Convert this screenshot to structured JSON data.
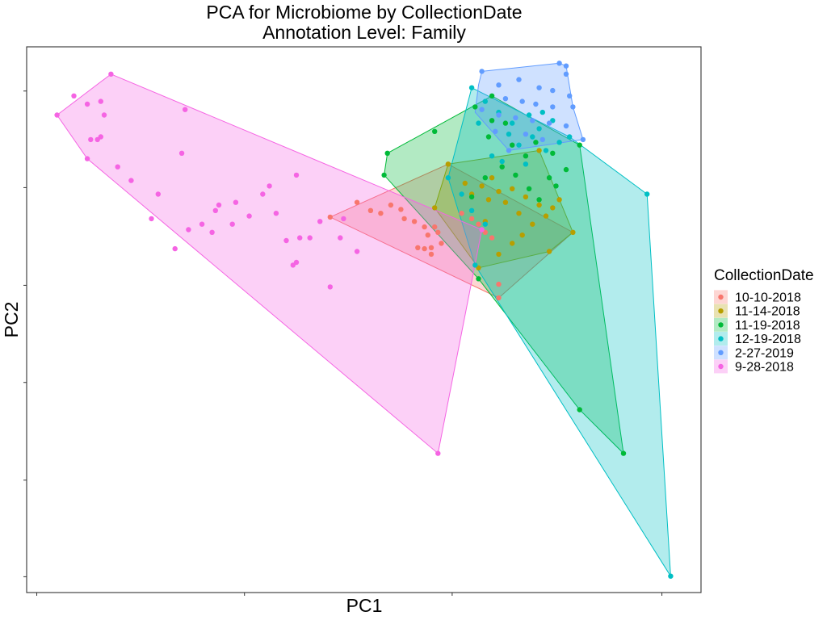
{
  "chart_data": {
    "type": "scatter",
    "title": "PCA for Microbiome by CollectionDate",
    "subtitle": "Annotation Level: Family",
    "xlabel": "PC1",
    "ylabel": "PC2",
    "xlim": [
      0,
      100
    ],
    "ylim": [
      0,
      100
    ],
    "tick_labels_shown": false,
    "grid": false,
    "legend": {
      "title": "CollectionDate",
      "position": "right"
    },
    "series": [
      {
        "name": "10-10-2018",
        "color": "#F8766D",
        "hull": [
          [
            45.0,
            68.8
          ],
          [
            62.5,
            78.5
          ],
          [
            81.0,
            66.0
          ],
          [
            70.0,
            54.0
          ]
        ],
        "points": [
          [
            45.0,
            68.8
          ],
          [
            49.0,
            71.5
          ],
          [
            51.0,
            70.0
          ],
          [
            52.5,
            69.5
          ],
          [
            54.0,
            71.0
          ],
          [
            55.5,
            70.2
          ],
          [
            56.0,
            68.5
          ],
          [
            57.5,
            68.0
          ],
          [
            59.0,
            67.0
          ],
          [
            59.5,
            65.5
          ],
          [
            60.5,
            67.0
          ],
          [
            61.0,
            66.0
          ],
          [
            58.0,
            63.2
          ],
          [
            59.0,
            63.0
          ],
          [
            60.0,
            63.2
          ],
          [
            61.5,
            64.0
          ],
          [
            64.5,
            69.5
          ],
          [
            66.0,
            68.5
          ],
          [
            67.0,
            67.5
          ],
          [
            68.0,
            66.0
          ],
          [
            69.0,
            65.0
          ],
          [
            70.0,
            56.5
          ],
          [
            70.0,
            54.0
          ],
          [
            62.5,
            78.5
          ],
          [
            60.0,
            62.0
          ]
        ]
      },
      {
        "name": "11-14-2018",
        "color": "#B79F00",
        "hull": [
          [
            62.5,
            78.5
          ],
          [
            76.0,
            81.0
          ],
          [
            81.0,
            66.0
          ],
          [
            77.5,
            62.5
          ],
          [
            67.0,
            59.5
          ],
          [
            60.5,
            70.5
          ]
        ],
        "points": [
          [
            62.5,
            78.5
          ],
          [
            65.0,
            75.0
          ],
          [
            66.0,
            73.0
          ],
          [
            67.5,
            74.5
          ],
          [
            68.5,
            72.0
          ],
          [
            69.0,
            76.0
          ],
          [
            70.0,
            73.5
          ],
          [
            71.0,
            71.5
          ],
          [
            72.0,
            74.0
          ],
          [
            73.0,
            69.5
          ],
          [
            74.0,
            72.5
          ],
          [
            75.0,
            67.5
          ],
          [
            76.0,
            71.0
          ],
          [
            77.0,
            69.0
          ],
          [
            78.0,
            70.5
          ],
          [
            79.0,
            72.0
          ],
          [
            76.0,
            81.0
          ],
          [
            81.0,
            66.0
          ],
          [
            77.5,
            62.5
          ],
          [
            72.0,
            64.0
          ],
          [
            70.0,
            62.0
          ],
          [
            67.0,
            59.5
          ],
          [
            60.5,
            70.5
          ],
          [
            68.0,
            68.0
          ],
          [
            73.5,
            65.5
          ]
        ]
      },
      {
        "name": "11-19-2018",
        "color": "#00BA38",
        "hull": [
          [
            53.5,
            80.5
          ],
          [
            69.0,
            91.0
          ],
          [
            82.0,
            82.0
          ],
          [
            88.5,
            25.5
          ],
          [
            82.0,
            33.5
          ],
          [
            67.0,
            57.5
          ],
          [
            53.0,
            76.5
          ]
        ],
        "points": [
          [
            69.0,
            91.0
          ],
          [
            66.5,
            89.0
          ],
          [
            69.0,
            86.5
          ],
          [
            68.5,
            83.5
          ],
          [
            71.0,
            86.0
          ],
          [
            72.0,
            82.0
          ],
          [
            74.0,
            80.0
          ],
          [
            75.5,
            82.5
          ],
          [
            78.0,
            80.5
          ],
          [
            80.0,
            77.5
          ],
          [
            82.0,
            82.0
          ],
          [
            77.5,
            76.0
          ],
          [
            70.5,
            78.0
          ],
          [
            72.5,
            76.5
          ],
          [
            74.5,
            74.0
          ],
          [
            76.0,
            72.0
          ],
          [
            78.5,
            74.5
          ],
          [
            68.0,
            76.0
          ],
          [
            66.0,
            72.5
          ],
          [
            60.5,
            84.5
          ],
          [
            53.5,
            80.5
          ],
          [
            53.0,
            76.5
          ],
          [
            67.0,
            57.5
          ],
          [
            88.5,
            25.5
          ],
          [
            82.0,
            33.5
          ]
        ]
      },
      {
        "name": "12-19-2018",
        "color": "#00BFC4",
        "hull": [
          [
            66.0,
            92.5
          ],
          [
            80.5,
            83.5
          ],
          [
            92.0,
            73.0
          ],
          [
            95.5,
            3.0
          ],
          [
            66.5,
            60.0
          ],
          [
            62.5,
            76.0
          ]
        ],
        "points": [
          [
            66.0,
            92.5
          ],
          [
            68.0,
            90.0
          ],
          [
            70.0,
            88.0
          ],
          [
            72.0,
            86.0
          ],
          [
            74.5,
            87.5
          ],
          [
            76.0,
            85.0
          ],
          [
            78.0,
            86.5
          ],
          [
            80.5,
            83.5
          ],
          [
            71.5,
            84.0
          ],
          [
            73.0,
            82.0
          ],
          [
            75.0,
            83.5
          ],
          [
            77.0,
            81.0
          ],
          [
            79.0,
            82.5
          ],
          [
            69.0,
            80.0
          ],
          [
            62.5,
            76.0
          ],
          [
            64.5,
            73.0
          ],
          [
            66.0,
            70.0
          ],
          [
            68.0,
            67.5
          ],
          [
            66.5,
            60.0
          ],
          [
            92.0,
            73.0
          ],
          [
            95.5,
            3.0
          ],
          [
            70.5,
            79.0
          ],
          [
            74.0,
            78.5
          ],
          [
            67.0,
            86.0
          ],
          [
            76.5,
            88.0
          ]
        ]
      },
      {
        "name": "2-27-2019",
        "color": "#619CFF",
        "hull": [
          [
            67.5,
            95.5
          ],
          [
            79.0,
            97.0
          ],
          [
            80.0,
            96.5
          ],
          [
            81.0,
            89.0
          ],
          [
            82.5,
            83.0
          ],
          [
            71.5,
            81.0
          ],
          [
            66.5,
            88.0
          ],
          [
            67.0,
            93.0
          ]
        ],
        "points": [
          [
            67.5,
            95.5
          ],
          [
            79.0,
            97.0
          ],
          [
            80.0,
            96.5
          ],
          [
            80.0,
            95.0
          ],
          [
            73.0,
            94.0
          ],
          [
            70.0,
            93.0
          ],
          [
            76.0,
            92.5
          ],
          [
            78.0,
            92.0
          ],
          [
            80.5,
            91.0
          ],
          [
            71.0,
            90.5
          ],
          [
            73.5,
            90.0
          ],
          [
            75.5,
            89.5
          ],
          [
            78.0,
            89.0
          ],
          [
            81.0,
            89.0
          ],
          [
            67.5,
            88.5
          ],
          [
            70.0,
            87.5
          ],
          [
            72.5,
            87.0
          ],
          [
            75.0,
            86.5
          ],
          [
            77.5,
            86.0
          ],
          [
            80.0,
            85.5
          ],
          [
            69.5,
            84.5
          ],
          [
            74.0,
            84.0
          ],
          [
            76.5,
            83.0
          ],
          [
            82.5,
            83.0
          ],
          [
            71.5,
            81.0
          ]
        ]
      },
      {
        "name": "9-28-2018",
        "color": "#F564E3",
        "hull": [
          [
            4.5,
            87.5
          ],
          [
            12.5,
            95.0
          ],
          [
            67.5,
            66.5
          ],
          [
            61.0,
            25.5
          ],
          [
            9.0,
            79.5
          ]
        ],
        "points": [
          [
            12.5,
            95.0
          ],
          [
            4.5,
            87.5
          ],
          [
            7.0,
            91.0
          ],
          [
            9.0,
            89.5
          ],
          [
            11.0,
            90.0
          ],
          [
            11.5,
            87.5
          ],
          [
            9.5,
            83.0
          ],
          [
            10.5,
            83.0
          ],
          [
            11.0,
            83.5
          ],
          [
            9.0,
            79.5
          ],
          [
            23.5,
            88.5
          ],
          [
            23.0,
            80.5
          ],
          [
            15.5,
            75.5
          ],
          [
            19.5,
            73.0
          ],
          [
            18.5,
            68.5
          ],
          [
            24.0,
            66.5
          ],
          [
            27.5,
            66.0
          ],
          [
            30.5,
            67.5
          ],
          [
            28.5,
            71.0
          ],
          [
            31.0,
            71.5
          ],
          [
            33.0,
            69.0
          ],
          [
            35.0,
            73.0
          ],
          [
            36.0,
            74.5
          ],
          [
            37.0,
            69.5
          ],
          [
            40.0,
            76.5
          ],
          [
            22.0,
            63.0
          ],
          [
            38.5,
            64.5
          ],
          [
            40.5,
            65.0
          ],
          [
            43.5,
            68.0
          ],
          [
            46.5,
            65.0
          ],
          [
            49.0,
            62.5
          ],
          [
            45.0,
            56.0
          ],
          [
            39.5,
            60.0
          ],
          [
            40.0,
            60.5
          ],
          [
            61.0,
            25.5
          ],
          [
            67.5,
            66.5
          ],
          [
            26.0,
            67.5
          ],
          [
            47.0,
            68.5
          ],
          [
            42.0,
            65.0
          ],
          [
            13.5,
            78.0
          ],
          [
            28.0,
            70.0
          ]
        ]
      }
    ]
  }
}
